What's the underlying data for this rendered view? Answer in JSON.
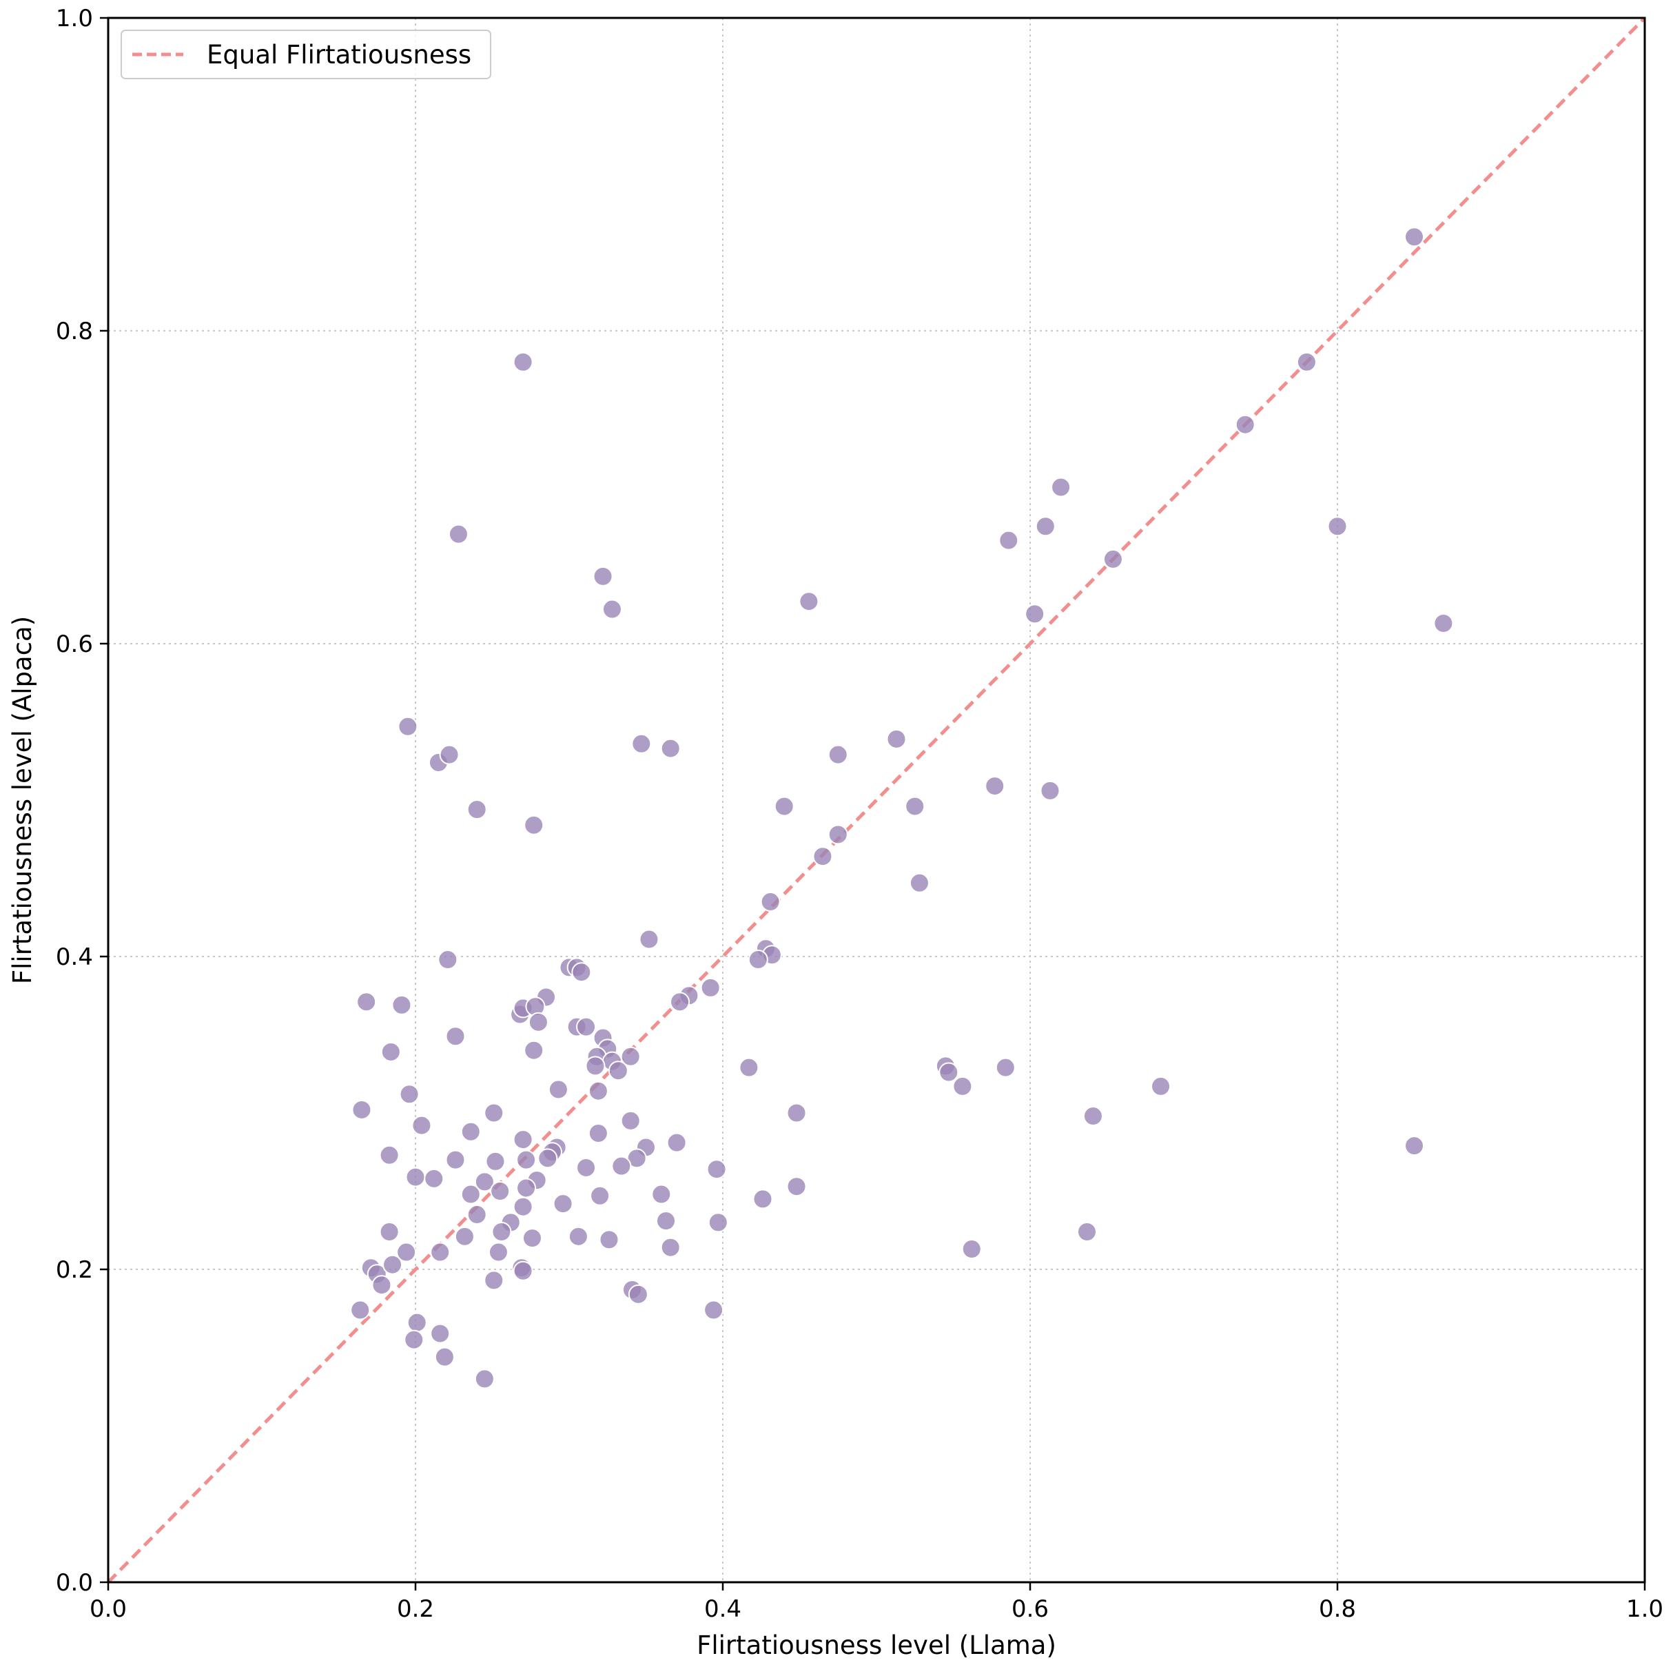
{
  "chart_data": {
    "type": "scatter",
    "xlabel": "Flirtatiousness level (Llama)",
    "ylabel": "Flirtatiousness level (Alpaca)",
    "xlim": [
      0.0,
      1.0
    ],
    "ylim": [
      0.0,
      1.0
    ],
    "xticks": [
      "0.0",
      "0.2",
      "0.4",
      "0.6",
      "0.8",
      "1.0"
    ],
    "yticks": [
      "0.0",
      "0.2",
      "0.4",
      "0.6",
      "0.8",
      "1.0"
    ],
    "grid": "dotted",
    "legend_position": "upper-left",
    "legend": [
      {
        "label": "Equal Flirtatiousness",
        "style": "dashed line",
        "color": "#f28e8e"
      }
    ],
    "reference_line": {
      "x": [
        0.0,
        1.0
      ],
      "y": [
        0.0,
        1.0
      ]
    },
    "point_color": "#9a85b5",
    "points": [
      [
        0.85,
        0.86
      ],
      [
        0.27,
        0.78
      ],
      [
        0.78,
        0.78
      ],
      [
        0.74,
        0.74
      ],
      [
        0.62,
        0.7
      ],
      [
        0.228,
        0.67
      ],
      [
        0.61,
        0.675
      ],
      [
        0.8,
        0.675
      ],
      [
        0.586,
        0.666
      ],
      [
        0.654,
        0.654
      ],
      [
        0.322,
        0.643
      ],
      [
        0.328,
        0.622
      ],
      [
        0.456,
        0.627
      ],
      [
        0.603,
        0.619
      ],
      [
        0.869,
        0.613
      ],
      [
        0.195,
        0.547
      ],
      [
        0.347,
        0.536
      ],
      [
        0.366,
        0.533
      ],
      [
        0.215,
        0.524
      ],
      [
        0.222,
        0.529
      ],
      [
        0.475,
        0.529
      ],
      [
        0.513,
        0.539
      ],
      [
        0.577,
        0.509
      ],
      [
        0.613,
        0.506
      ],
      [
        0.24,
        0.494
      ],
      [
        0.44,
        0.496
      ],
      [
        0.525,
        0.496
      ],
      [
        0.277,
        0.484
      ],
      [
        0.475,
        0.478
      ],
      [
        0.465,
        0.464
      ],
      [
        0.528,
        0.447
      ],
      [
        0.431,
        0.435
      ],
      [
        0.352,
        0.411
      ],
      [
        0.221,
        0.398
      ],
      [
        0.428,
        0.405
      ],
      [
        0.432,
        0.401
      ],
      [
        0.423,
        0.398
      ],
      [
        0.3,
        0.393
      ],
      [
        0.305,
        0.393
      ],
      [
        0.308,
        0.39
      ],
      [
        0.392,
        0.38
      ],
      [
        0.378,
        0.375
      ],
      [
        0.372,
        0.371
      ],
      [
        0.168,
        0.371
      ],
      [
        0.191,
        0.369
      ],
      [
        0.285,
        0.374
      ],
      [
        0.268,
        0.363
      ],
      [
        0.27,
        0.367
      ],
      [
        0.278,
        0.368
      ],
      [
        0.28,
        0.358
      ],
      [
        0.305,
        0.355
      ],
      [
        0.311,
        0.355
      ],
      [
        0.226,
        0.349
      ],
      [
        0.322,
        0.348
      ],
      [
        0.184,
        0.339
      ],
      [
        0.277,
        0.34
      ],
      [
        0.325,
        0.341
      ],
      [
        0.318,
        0.336
      ],
      [
        0.328,
        0.333
      ],
      [
        0.34,
        0.336
      ],
      [
        0.317,
        0.33
      ],
      [
        0.332,
        0.327
      ],
      [
        0.417,
        0.329
      ],
      [
        0.545,
        0.33
      ],
      [
        0.547,
        0.326
      ],
      [
        0.584,
        0.329
      ],
      [
        0.556,
        0.317
      ],
      [
        0.685,
        0.317
      ],
      [
        0.196,
        0.312
      ],
      [
        0.293,
        0.315
      ],
      [
        0.319,
        0.314
      ],
      [
        0.165,
        0.302
      ],
      [
        0.251,
        0.3
      ],
      [
        0.34,
        0.295
      ],
      [
        0.448,
        0.3
      ],
      [
        0.641,
        0.298
      ],
      [
        0.204,
        0.292
      ],
      [
        0.236,
        0.288
      ],
      [
        0.319,
        0.287
      ],
      [
        0.27,
        0.283
      ],
      [
        0.37,
        0.281
      ],
      [
        0.35,
        0.278
      ],
      [
        0.292,
        0.278
      ],
      [
        0.289,
        0.275
      ],
      [
        0.183,
        0.273
      ],
      [
        0.226,
        0.27
      ],
      [
        0.252,
        0.269
      ],
      [
        0.272,
        0.27
      ],
      [
        0.286,
        0.271
      ],
      [
        0.344,
        0.271
      ],
      [
        0.311,
        0.265
      ],
      [
        0.334,
        0.266
      ],
      [
        0.396,
        0.264
      ],
      [
        0.85,
        0.279
      ],
      [
        0.2,
        0.259
      ],
      [
        0.212,
        0.258
      ],
      [
        0.245,
        0.256
      ],
      [
        0.279,
        0.257
      ],
      [
        0.255,
        0.25
      ],
      [
        0.272,
        0.252
      ],
      [
        0.236,
        0.248
      ],
      [
        0.32,
        0.247
      ],
      [
        0.36,
        0.248
      ],
      [
        0.426,
        0.245
      ],
      [
        0.448,
        0.253
      ],
      [
        0.27,
        0.24
      ],
      [
        0.296,
        0.242
      ],
      [
        0.24,
        0.235
      ],
      [
        0.262,
        0.23
      ],
      [
        0.363,
        0.231
      ],
      [
        0.397,
        0.23
      ],
      [
        0.183,
        0.224
      ],
      [
        0.232,
        0.221
      ],
      [
        0.256,
        0.224
      ],
      [
        0.276,
        0.22
      ],
      [
        0.306,
        0.221
      ],
      [
        0.326,
        0.219
      ],
      [
        0.637,
        0.224
      ],
      [
        0.194,
        0.211
      ],
      [
        0.216,
        0.211
      ],
      [
        0.254,
        0.211
      ],
      [
        0.366,
        0.214
      ],
      [
        0.562,
        0.213
      ],
      [
        0.171,
        0.201
      ],
      [
        0.175,
        0.197
      ],
      [
        0.185,
        0.203
      ],
      [
        0.178,
        0.19
      ],
      [
        0.269,
        0.201
      ],
      [
        0.27,
        0.199
      ],
      [
        0.251,
        0.193
      ],
      [
        0.341,
        0.187
      ],
      [
        0.345,
        0.184
      ],
      [
        0.164,
        0.174
      ],
      [
        0.394,
        0.174
      ],
      [
        0.201,
        0.166
      ],
      [
        0.199,
        0.155
      ],
      [
        0.216,
        0.159
      ],
      [
        0.219,
        0.144
      ],
      [
        0.245,
        0.13
      ]
    ]
  }
}
